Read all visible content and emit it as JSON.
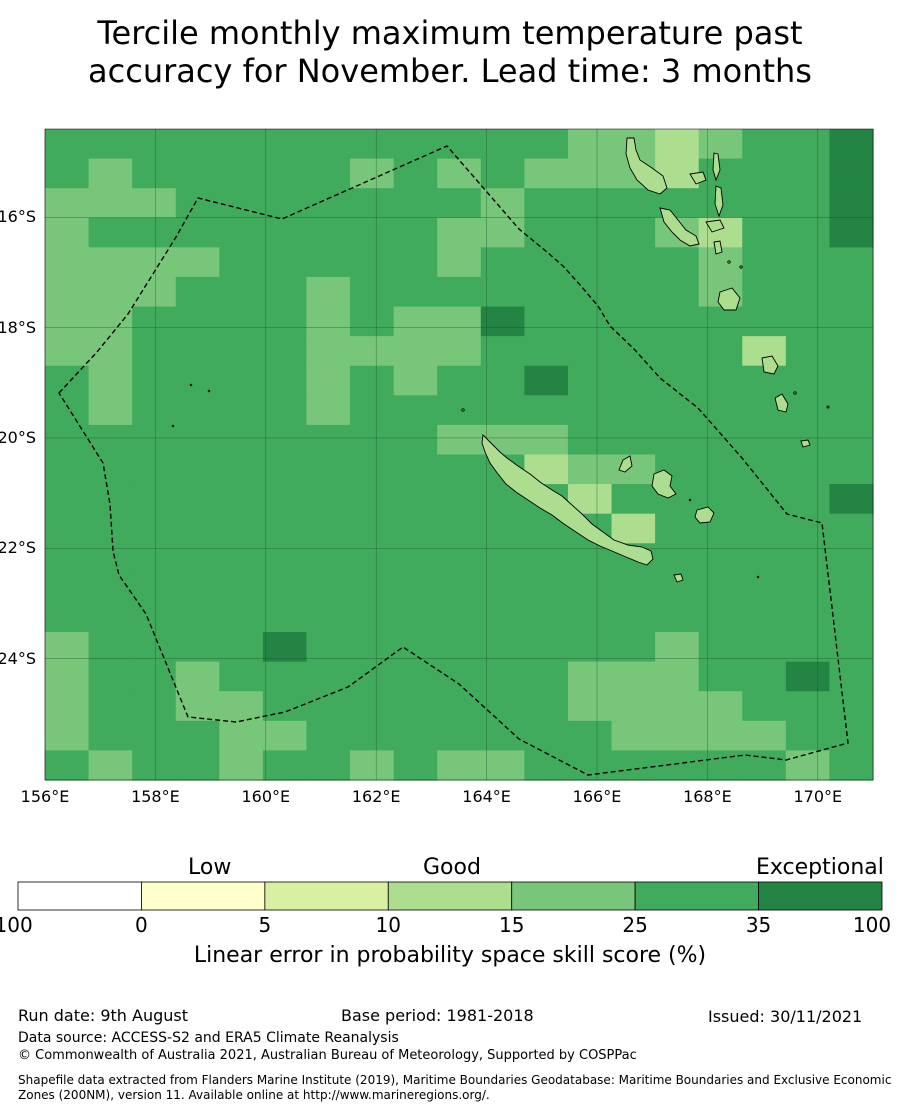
{
  "title": {
    "line1": "Tercile monthly maximum temperature past",
    "line2": "accuracy for November. Lead time: 3 months"
  },
  "map": {
    "lon_range": [
      156,
      171
    ],
    "lat_range": [
      -26.2,
      -14.4
    ],
    "lat_ticks": [
      {
        "value": -16,
        "label": "16°S"
      },
      {
        "value": -18,
        "label": "18°S"
      },
      {
        "value": -20,
        "label": "20°S"
      },
      {
        "value": -22,
        "label": "22°S"
      },
      {
        "value": -24,
        "label": "24°S"
      }
    ],
    "lon_ticks": [
      {
        "value": 156,
        "label": "156°E"
      },
      {
        "value": 158,
        "label": "158°E"
      },
      {
        "value": 160,
        "label": "160°E"
      },
      {
        "value": 162,
        "label": "162°E"
      },
      {
        "value": 164,
        "label": "164°E"
      },
      {
        "value": 166,
        "label": "166°E"
      },
      {
        "value": 168,
        "label": "168°E"
      },
      {
        "value": 170,
        "label": "170°E"
      }
    ],
    "grid": "on",
    "background_class": 5,
    "cells": [
      [
        0,
        0,
        0,
        0,
        0,
        0,
        0,
        0,
        0,
        0,
        0,
        0,
        4,
        4,
        3,
        4,
        0,
        0,
        6
      ],
      [
        0,
        4,
        0,
        0,
        0,
        0,
        0,
        4,
        0,
        4,
        0,
        4,
        4,
        4,
        3,
        0,
        0,
        0,
        6
      ],
      [
        4,
        4,
        4,
        0,
        0,
        0,
        0,
        0,
        0,
        0,
        4,
        0,
        0,
        0,
        0,
        0,
        0,
        0,
        6
      ],
      [
        4,
        0,
        0,
        0,
        0,
        0,
        0,
        0,
        0,
        4,
        4,
        0,
        0,
        0,
        4,
        3,
        0,
        0,
        6
      ],
      [
        4,
        4,
        4,
        4,
        0,
        0,
        0,
        0,
        0,
        4,
        0,
        0,
        0,
        0,
        0,
        4,
        0,
        0,
        0
      ],
      [
        4,
        4,
        4,
        0,
        0,
        0,
        4,
        0,
        0,
        0,
        0,
        0,
        0,
        0,
        0,
        4,
        0,
        0,
        0
      ],
      [
        4,
        4,
        0,
        0,
        0,
        0,
        4,
        0,
        4,
        4,
        6,
        0,
        0,
        0,
        0,
        0,
        0,
        0,
        0
      ],
      [
        4,
        4,
        0,
        0,
        0,
        0,
        4,
        4,
        4,
        4,
        0,
        0,
        0,
        0,
        0,
        0,
        3,
        0,
        0
      ],
      [
        0,
        4,
        0,
        0,
        0,
        0,
        4,
        0,
        4,
        0,
        0,
        6,
        0,
        0,
        0,
        0,
        0,
        0,
        0
      ],
      [
        0,
        4,
        0,
        0,
        0,
        0,
        4,
        0,
        0,
        0,
        0,
        0,
        0,
        0,
        0,
        0,
        0,
        0,
        0
      ],
      [
        0,
        0,
        0,
        0,
        0,
        0,
        0,
        0,
        0,
        4,
        4,
        4,
        0,
        0,
        0,
        0,
        0,
        0,
        0
      ],
      [
        0,
        0,
        0,
        0,
        0,
        0,
        0,
        0,
        0,
        0,
        0,
        3,
        4,
        4,
        0,
        0,
        0,
        0,
        0
      ],
      [
        0,
        0,
        0,
        0,
        0,
        0,
        0,
        0,
        0,
        0,
        0,
        0,
        3,
        0,
        0,
        0,
        0,
        0,
        6
      ],
      [
        0,
        0,
        0,
        0,
        0,
        0,
        0,
        0,
        0,
        0,
        0,
        0,
        0,
        3,
        0,
        0,
        0,
        0,
        0
      ],
      [
        0,
        0,
        0,
        0,
        0,
        0,
        0,
        0,
        0,
        0,
        0,
        0,
        0,
        0,
        0,
        0,
        0,
        0,
        0
      ],
      [
        0,
        0,
        0,
        0,
        0,
        0,
        0,
        0,
        0,
        0,
        0,
        0,
        0,
        0,
        0,
        0,
        0,
        0,
        0
      ],
      [
        0,
        0,
        0,
        0,
        0,
        0,
        0,
        0,
        0,
        0,
        0,
        0,
        0,
        0,
        0,
        0,
        0,
        0,
        0
      ],
      [
        4,
        0,
        0,
        0,
        0,
        6,
        0,
        0,
        0,
        0,
        0,
        0,
        0,
        0,
        4,
        0,
        0,
        0,
        0
      ],
      [
        4,
        0,
        0,
        4,
        0,
        0,
        0,
        0,
        0,
        0,
        0,
        0,
        4,
        4,
        4,
        0,
        0,
        6,
        0
      ],
      [
        4,
        0,
        0,
        4,
        4,
        0,
        0,
        0,
        0,
        0,
        0,
        0,
        4,
        4,
        4,
        4,
        0,
        0,
        0
      ],
      [
        4,
        0,
        0,
        0,
        4,
        4,
        0,
        0,
        0,
        0,
        0,
        0,
        0,
        4,
        4,
        4,
        4,
        0,
        0
      ],
      [
        0,
        4,
        0,
        0,
        4,
        0,
        0,
        4,
        0,
        4,
        4,
        0,
        0,
        0,
        0,
        0,
        0,
        4,
        0
      ]
    ]
  },
  "colorbar": {
    "categories": [
      {
        "label": "Low"
      },
      {
        "label": "Good"
      },
      {
        "label": "Exceptional"
      }
    ],
    "bins": [
      {
        "from": "-100",
        "to": "0",
        "color": "#ffffff"
      },
      {
        "from": "0",
        "to": "5",
        "color": "#ffffcc"
      },
      {
        "from": "5",
        "to": "10",
        "color": "#d9f0a3"
      },
      {
        "from": "10",
        "to": "15",
        "color": "#addd8e"
      },
      {
        "from": "15",
        "to": "25",
        "color": "#78c679"
      },
      {
        "from": "25",
        "to": "35",
        "color": "#41ab5d"
      },
      {
        "from": "35",
        "to": "100",
        "color": "#238443"
      }
    ],
    "tick_labels": [
      "-100",
      "0",
      "5",
      "10",
      "15",
      "25",
      "35",
      "100"
    ],
    "label": "Linear error in probability space skill score (%)"
  },
  "footer": {
    "run_date": "Run date: 9th August",
    "base_period": "Base period: 1981-2018",
    "issued": "Issued: 30/11/2021",
    "data_source": "Data source: ACCESS-S2 and ERA5 Climate Reanalysis",
    "copyright": "© Commonwealth of Australia 2021, Australian Bureau of Meteorology, Supported by COSPPac",
    "shapefile": "Shapefile data extracted from Flanders Marine Institute (2019), Maritime Boundaries Geodatabase: Maritime Boundaries and Exclusive Economic Zones (200NM), version 11. Available online at http://www.marineregions.org/."
  }
}
